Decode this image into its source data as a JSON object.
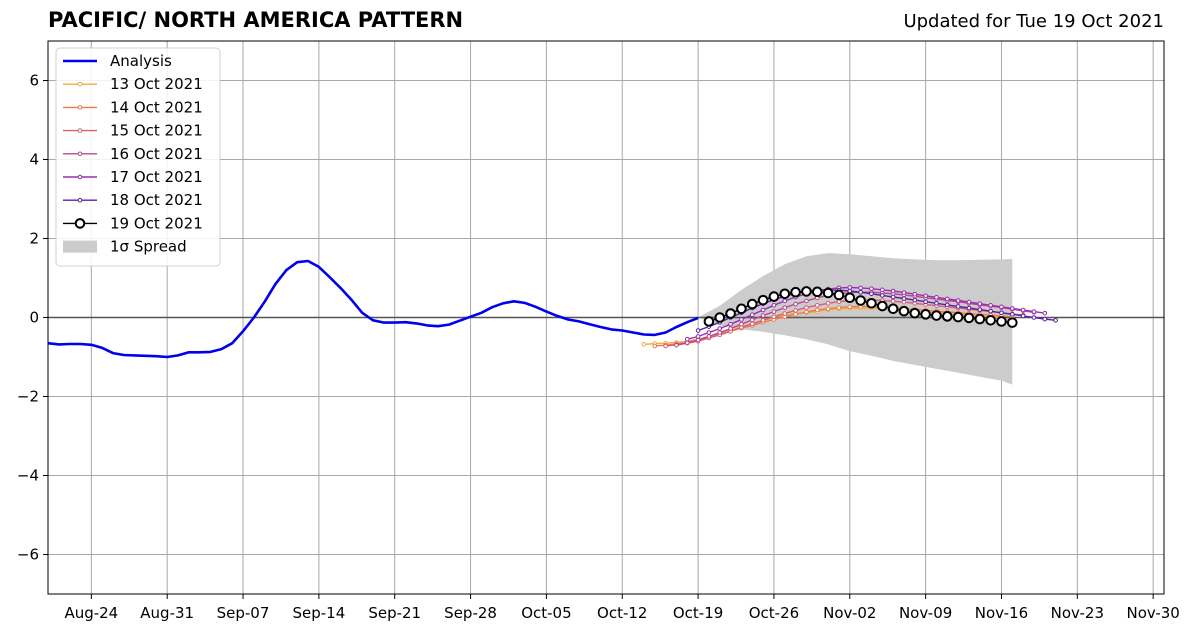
{
  "chart_data": {
    "type": "line",
    "title": "PACIFIC/ NORTH AMERICA PATTERN",
    "subtitle": "Updated for Tue 19 Oct 2021",
    "xlabel": "",
    "ylabel": "",
    "xlim": [
      "2021-08-20",
      "2021-12-01"
    ],
    "ylim": [
      -7,
      7
    ],
    "x_ticks": [
      "Aug-24",
      "Aug-31",
      "Sep-07",
      "Sep-14",
      "Sep-21",
      "Sep-28",
      "Oct-05",
      "Oct-12",
      "Oct-19",
      "Oct-26",
      "Nov-02",
      "Nov-09",
      "Nov-16",
      "Nov-23",
      "Nov-30"
    ],
    "y_ticks": [
      "−6",
      "−4",
      "−2",
      "0",
      "2",
      "4",
      "6"
    ],
    "y_tick_values": [
      -6,
      -4,
      -2,
      0,
      2,
      4,
      6
    ],
    "grid": true,
    "legend_position": "top-left",
    "analysis": {
      "name": "Analysis",
      "color": "#0000ee",
      "points": [
        [
          "2021-08-20",
          -0.65
        ],
        [
          "2021-08-21",
          -0.68
        ],
        [
          "2021-08-22",
          -0.67
        ],
        [
          "2021-08-23",
          -0.67
        ],
        [
          "2021-08-24",
          -0.69
        ],
        [
          "2021-08-25",
          -0.77
        ],
        [
          "2021-08-26",
          -0.9
        ],
        [
          "2021-08-27",
          -0.95
        ],
        [
          "2021-08-28",
          -0.96
        ],
        [
          "2021-08-29",
          -0.97
        ],
        [
          "2021-08-30",
          -0.98
        ],
        [
          "2021-08-31",
          -1.0
        ],
        [
          "2021-09-01",
          -0.96
        ],
        [
          "2021-09-02",
          -0.88
        ],
        [
          "2021-09-03",
          -0.88
        ],
        [
          "2021-09-04",
          -0.87
        ],
        [
          "2021-09-05",
          -0.8
        ],
        [
          "2021-09-06",
          -0.65
        ],
        [
          "2021-09-07",
          -0.35
        ],
        [
          "2021-09-08",
          0.0
        ],
        [
          "2021-09-09",
          0.4
        ],
        [
          "2021-09-10",
          0.85
        ],
        [
          "2021-09-11",
          1.2
        ],
        [
          "2021-09-12",
          1.4
        ],
        [
          "2021-09-13",
          1.43
        ],
        [
          "2021-09-14",
          1.28
        ],
        [
          "2021-09-15",
          1.02
        ],
        [
          "2021-09-16",
          0.75
        ],
        [
          "2021-09-17",
          0.45
        ],
        [
          "2021-09-18",
          0.12
        ],
        [
          "2021-09-19",
          -0.07
        ],
        [
          "2021-09-20",
          -0.13
        ],
        [
          "2021-09-21",
          -0.13
        ],
        [
          "2021-09-22",
          -0.12
        ],
        [
          "2021-09-23",
          -0.15
        ],
        [
          "2021-09-24",
          -0.2
        ],
        [
          "2021-09-25",
          -0.22
        ],
        [
          "2021-09-26",
          -0.18
        ],
        [
          "2021-09-27",
          -0.08
        ],
        [
          "2021-09-28",
          0.02
        ],
        [
          "2021-09-29",
          0.12
        ],
        [
          "2021-09-30",
          0.26
        ],
        [
          "2021-10-01",
          0.36
        ],
        [
          "2021-10-02",
          0.41
        ],
        [
          "2021-10-03",
          0.37
        ],
        [
          "2021-10-04",
          0.27
        ],
        [
          "2021-10-05",
          0.15
        ],
        [
          "2021-10-06",
          0.04
        ],
        [
          "2021-10-07",
          -0.05
        ],
        [
          "2021-10-08",
          -0.1
        ],
        [
          "2021-10-09",
          -0.17
        ],
        [
          "2021-10-10",
          -0.24
        ],
        [
          "2021-10-11",
          -0.3
        ],
        [
          "2021-10-12",
          -0.33
        ],
        [
          "2021-10-13",
          -0.38
        ],
        [
          "2021-10-14",
          -0.43
        ],
        [
          "2021-10-15",
          -0.44
        ],
        [
          "2021-10-16",
          -0.38
        ],
        [
          "2021-10-17",
          -0.24
        ],
        [
          "2021-10-18",
          -0.12
        ],
        [
          "2021-10-19",
          -0.01
        ]
      ]
    },
    "spread": {
      "name": "1σ Spread",
      "color": "#cccccc",
      "points": [
        [
          "2021-10-19",
          0.0,
          0.0
        ],
        [
          "2021-10-21",
          0.3,
          -0.2
        ],
        [
          "2021-10-23",
          0.7,
          -0.3
        ],
        [
          "2021-10-25",
          1.05,
          -0.36
        ],
        [
          "2021-10-27",
          1.35,
          -0.45
        ],
        [
          "2021-10-29",
          1.55,
          -0.55
        ],
        [
          "2021-10-31",
          1.63,
          -0.68
        ],
        [
          "2021-11-02",
          1.6,
          -0.85
        ],
        [
          "2021-11-04",
          1.55,
          -0.97
        ],
        [
          "2021-11-06",
          1.5,
          -1.1
        ],
        [
          "2021-11-08",
          1.47,
          -1.2
        ],
        [
          "2021-11-10",
          1.45,
          -1.3
        ],
        [
          "2021-11-12",
          1.45,
          -1.4
        ],
        [
          "2021-11-14",
          1.46,
          -1.5
        ],
        [
          "2021-11-16",
          1.47,
          -1.6
        ],
        [
          "2021-11-17",
          1.48,
          -1.7
        ]
      ]
    },
    "forecasts": [
      {
        "name": "13 Oct 2021",
        "color": "#f5aa3a",
        "start": "2021-10-14",
        "values": [
          -0.68,
          -0.66,
          -0.65,
          -0.63,
          -0.6,
          -0.55,
          -0.48,
          -0.4,
          -0.32,
          -0.24,
          -0.16,
          -0.08,
          0.0,
          0.06,
          0.1,
          0.12,
          0.15,
          0.2,
          0.22,
          0.24,
          0.24,
          0.24,
          0.22,
          0.2,
          0.18,
          0.16,
          0.14,
          0.12,
          0.1,
          0.08,
          0.06,
          0.04,
          0.02,
          0.0
        ]
      },
      {
        "name": "14 Oct 2021",
        "color": "#ee7b4c",
        "start": "2021-10-15",
        "values": [
          -0.72,
          -0.7,
          -0.67,
          -0.63,
          -0.57,
          -0.5,
          -0.42,
          -0.34,
          -0.27,
          -0.2,
          -0.12,
          -0.05,
          0.02,
          0.08,
          0.14,
          0.19,
          0.22,
          0.25,
          0.27,
          0.28,
          0.28,
          0.27,
          0.25,
          0.22,
          0.2,
          0.18,
          0.16,
          0.14,
          0.12,
          0.1,
          0.08,
          0.06,
          0.04,
          0.02
        ]
      },
      {
        "name": "15 Oct 2021",
        "color": "#d95f76",
        "start": "2021-10-16",
        "values": [
          -0.72,
          -0.69,
          -0.65,
          -0.6,
          -0.52,
          -0.44,
          -0.35,
          -0.25,
          -0.16,
          -0.07,
          0.02,
          0.1,
          0.18,
          0.25,
          0.31,
          0.36,
          0.4,
          0.43,
          0.44,
          0.44,
          0.43,
          0.41,
          0.39,
          0.36,
          0.33,
          0.3,
          0.27,
          0.24,
          0.21,
          0.18,
          0.15,
          0.12,
          0.09,
          0.06
        ]
      },
      {
        "name": "16 Oct 2021",
        "color": "#b9478e",
        "start": "2021-10-17",
        "values": [
          -0.7,
          -0.64,
          -0.57,
          -0.48,
          -0.38,
          -0.28,
          -0.17,
          -0.06,
          0.05,
          0.15,
          0.25,
          0.34,
          0.42,
          0.5,
          0.56,
          0.6,
          0.63,
          0.64,
          0.64,
          0.62,
          0.6,
          0.57,
          0.54,
          0.5,
          0.47,
          0.43,
          0.4,
          0.36,
          0.32,
          0.29,
          0.25,
          0.21,
          0.17,
          0.13
        ]
      },
      {
        "name": "17 Oct 2021",
        "color": "#9a2db0",
        "start": "2021-10-18",
        "values": [
          -0.55,
          -0.48,
          -0.38,
          -0.28,
          -0.17,
          -0.05,
          0.07,
          0.19,
          0.31,
          0.42,
          0.52,
          0.6,
          0.67,
          0.72,
          0.75,
          0.76,
          0.75,
          0.73,
          0.7,
          0.67,
          0.63,
          0.59,
          0.55,
          0.51,
          0.47,
          0.43,
          0.39,
          0.35,
          0.31,
          0.27,
          0.23,
          0.19,
          0.15,
          0.11
        ]
      },
      {
        "name": "18 Oct 2021",
        "color": "#5a1fa0",
        "start": "2021-10-19",
        "values": [
          -0.33,
          -0.23,
          -0.12,
          0.0,
          0.12,
          0.24,
          0.35,
          0.45,
          0.54,
          0.61,
          0.66,
          0.69,
          0.7,
          0.69,
          0.67,
          0.64,
          0.6,
          0.56,
          0.52,
          0.48,
          0.44,
          0.4,
          0.36,
          0.32,
          0.28,
          0.24,
          0.2,
          0.16,
          0.12,
          0.08,
          0.04,
          0.0,
          -0.04,
          -0.07
        ]
      },
      {
        "name": "19 Oct 2021",
        "color": "#000000",
        "start": "2021-10-20",
        "values": [
          -0.1,
          0.0,
          0.1,
          0.22,
          0.34,
          0.44,
          0.53,
          0.6,
          0.64,
          0.66,
          0.65,
          0.62,
          0.57,
          0.5,
          0.43,
          0.36,
          0.29,
          0.22,
          0.16,
          0.11,
          0.08,
          0.05,
          0.03,
          0.01,
          -0.01,
          -0.04,
          -0.07,
          -0.1,
          -0.13
        ]
      }
    ]
  }
}
